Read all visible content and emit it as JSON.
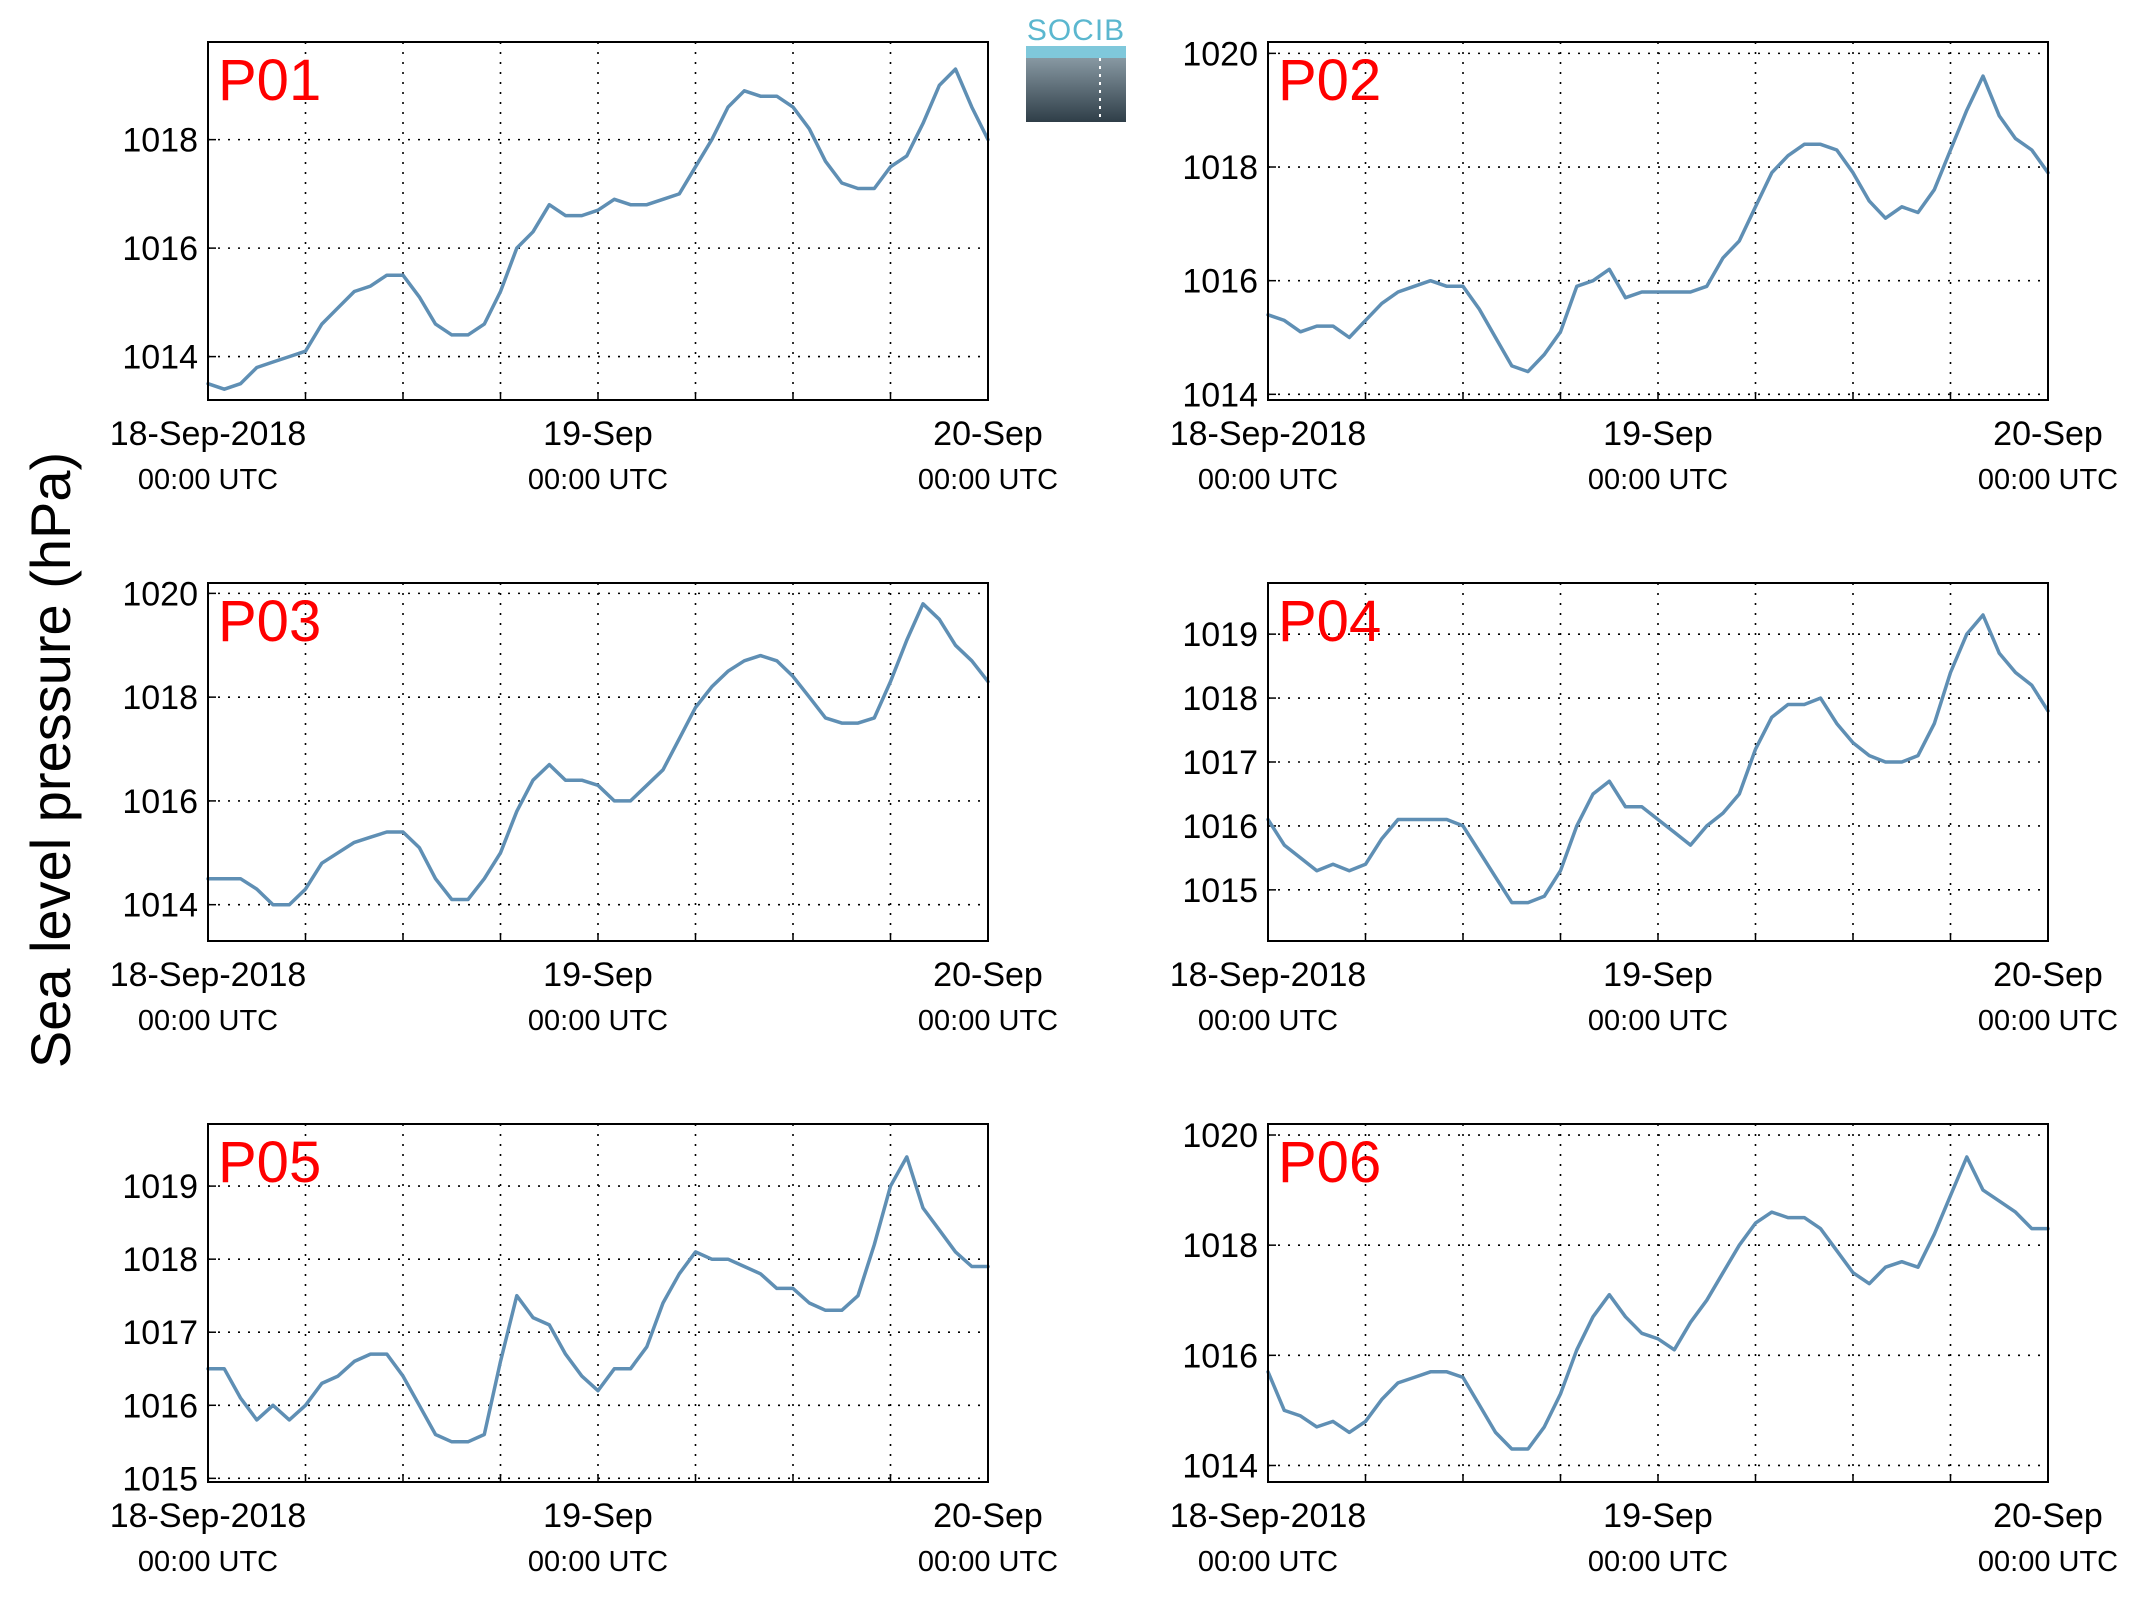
{
  "figure": {
    "ylabel": "Sea level pressure (hPa)",
    "logo_text": "SOCIB",
    "colors": {
      "line": "#5f8fb4",
      "panel_label": "#ff0000",
      "grid": "#000000"
    }
  },
  "chart_data": [
    {
      "type": "line",
      "name": "P01",
      "x_ticks": [
        {
          "label": "18-Sep-2018",
          "sublabel": "00:00 UTC",
          "x": 0
        },
        {
          "label": "19-Sep",
          "sublabel": "00:00 UTC",
          "x": 24
        },
        {
          "label": "20-Sep",
          "sublabel": "00:00 UTC",
          "x": 48
        }
      ],
      "x_unit": "hours since 18-Sep-2018 00:00 UTC",
      "xlim": [
        0,
        48
      ],
      "x_minor_grid_every": 6,
      "ylim": [
        1013.2,
        1019.8
      ],
      "y_ticks": [
        1014,
        1016,
        1018
      ],
      "grid": true,
      "x": [
        0,
        1,
        2,
        3,
        4,
        5,
        6,
        7,
        8,
        9,
        10,
        11,
        12,
        13,
        14,
        15,
        16,
        17,
        18,
        19,
        20,
        21,
        22,
        23,
        24,
        25,
        26,
        27,
        28,
        29,
        30,
        31,
        32,
        33,
        34,
        35,
        36,
        37,
        38,
        39,
        40,
        41,
        42,
        43,
        44,
        45,
        46,
        47,
        48
      ],
      "y": [
        1013.5,
        1013.4,
        1013.5,
        1013.8,
        1013.9,
        1014.0,
        1014.1,
        1014.6,
        1014.9,
        1015.2,
        1015.3,
        1015.5,
        1015.5,
        1015.1,
        1014.6,
        1014.4,
        1014.4,
        1014.6,
        1015.2,
        1016.0,
        1016.3,
        1016.8,
        1016.6,
        1016.6,
        1016.7,
        1016.9,
        1016.8,
        1016.8,
        1016.9,
        1017.0,
        1017.5,
        1018.0,
        1018.6,
        1018.9,
        1018.8,
        1018.8,
        1018.6,
        1018.2,
        1017.6,
        1017.2,
        1017.1,
        1017.1,
        1017.5,
        1017.7,
        1018.3,
        1019.0,
        1019.3,
        1018.6,
        1018.0
      ]
    },
    {
      "type": "line",
      "name": "P02",
      "x_ticks": [
        {
          "label": "18-Sep-2018",
          "sublabel": "00:00 UTC",
          "x": 0
        },
        {
          "label": "19-Sep",
          "sublabel": "00:00 UTC",
          "x": 24
        },
        {
          "label": "20-Sep",
          "sublabel": "00:00 UTC",
          "x": 48
        }
      ],
      "x_unit": "hours since 18-Sep-2018 00:00 UTC",
      "xlim": [
        0,
        48
      ],
      "x_minor_grid_every": 6,
      "ylim": [
        1013.9,
        1020.2
      ],
      "y_ticks": [
        1014,
        1016,
        1018,
        1020
      ],
      "grid": true,
      "x": [
        0,
        1,
        2,
        3,
        4,
        5,
        6,
        7,
        8,
        9,
        10,
        11,
        12,
        13,
        14,
        15,
        16,
        17,
        18,
        19,
        20,
        21,
        22,
        23,
        24,
        25,
        26,
        27,
        28,
        29,
        30,
        31,
        32,
        33,
        34,
        35,
        36,
        37,
        38,
        39,
        40,
        41,
        42,
        43,
        44,
        45,
        46,
        47,
        48
      ],
      "y": [
        1015.4,
        1015.3,
        1015.1,
        1015.2,
        1015.2,
        1015.0,
        1015.3,
        1015.6,
        1015.8,
        1015.9,
        1016.0,
        1015.9,
        1015.9,
        1015.5,
        1015.0,
        1014.5,
        1014.4,
        1014.7,
        1015.1,
        1015.9,
        1016.0,
        1016.2,
        1015.7,
        1015.8,
        1015.8,
        1015.8,
        1015.8,
        1015.9,
        1016.4,
        1016.7,
        1017.3,
        1017.9,
        1018.2,
        1018.4,
        1018.4,
        1018.3,
        1017.9,
        1017.4,
        1017.1,
        1017.3,
        1017.2,
        1017.6,
        1018.3,
        1019.0,
        1019.6,
        1018.9,
        1018.5,
        1018.3,
        1017.9
      ]
    },
    {
      "type": "line",
      "name": "P03",
      "x_ticks": [
        {
          "label": "18-Sep-2018",
          "sublabel": "00:00 UTC",
          "x": 0
        },
        {
          "label": "19-Sep",
          "sublabel": "00:00 UTC",
          "x": 24
        },
        {
          "label": "20-Sep",
          "sublabel": "00:00 UTC",
          "x": 48
        }
      ],
      "x_unit": "hours since 18-Sep-2018 00:00 UTC",
      "xlim": [
        0,
        48
      ],
      "x_minor_grid_every": 6,
      "ylim": [
        1013.3,
        1020.2
      ],
      "y_ticks": [
        1014,
        1016,
        1018,
        1020
      ],
      "grid": true,
      "x": [
        0,
        1,
        2,
        3,
        4,
        5,
        6,
        7,
        8,
        9,
        10,
        11,
        12,
        13,
        14,
        15,
        16,
        17,
        18,
        19,
        20,
        21,
        22,
        23,
        24,
        25,
        26,
        27,
        28,
        29,
        30,
        31,
        32,
        33,
        34,
        35,
        36,
        37,
        38,
        39,
        40,
        41,
        42,
        43,
        44,
        45,
        46,
        47,
        48
      ],
      "y": [
        1014.5,
        1014.5,
        1014.5,
        1014.3,
        1014.0,
        1014.0,
        1014.3,
        1014.8,
        1015.0,
        1015.2,
        1015.3,
        1015.4,
        1015.4,
        1015.1,
        1014.5,
        1014.1,
        1014.1,
        1014.5,
        1015.0,
        1015.8,
        1016.4,
        1016.7,
        1016.4,
        1016.4,
        1016.3,
        1016.0,
        1016.0,
        1016.3,
        1016.6,
        1017.2,
        1017.8,
        1018.2,
        1018.5,
        1018.7,
        1018.8,
        1018.7,
        1018.4,
        1018.0,
        1017.6,
        1017.5,
        1017.5,
        1017.6,
        1018.3,
        1019.1,
        1019.8,
        1019.5,
        1019.0,
        1018.7,
        1018.3
      ]
    },
    {
      "type": "line",
      "name": "P04",
      "x_ticks": [
        {
          "label": "18-Sep-2018",
          "sublabel": "00:00 UTC",
          "x": 0
        },
        {
          "label": "19-Sep",
          "sublabel": "00:00 UTC",
          "x": 24
        },
        {
          "label": "20-Sep",
          "sublabel": "00:00 UTC",
          "x": 48
        }
      ],
      "x_unit": "hours since 18-Sep-2018 00:00 UTC",
      "xlim": [
        0,
        48
      ],
      "x_minor_grid_every": 6,
      "ylim": [
        1014.2,
        1019.8
      ],
      "y_ticks": [
        1015,
        1016,
        1017,
        1018,
        1019
      ],
      "grid": true,
      "x": [
        0,
        1,
        2,
        3,
        4,
        5,
        6,
        7,
        8,
        9,
        10,
        11,
        12,
        13,
        14,
        15,
        16,
        17,
        18,
        19,
        20,
        21,
        22,
        23,
        24,
        25,
        26,
        27,
        28,
        29,
        30,
        31,
        32,
        33,
        34,
        35,
        36,
        37,
        38,
        39,
        40,
        41,
        42,
        43,
        44,
        45,
        46,
        47,
        48
      ],
      "y": [
        1016.1,
        1015.7,
        1015.5,
        1015.3,
        1015.4,
        1015.3,
        1015.4,
        1015.8,
        1016.1,
        1016.1,
        1016.1,
        1016.1,
        1016.0,
        1015.6,
        1015.2,
        1014.8,
        1014.8,
        1014.9,
        1015.3,
        1016.0,
        1016.5,
        1016.7,
        1016.3,
        1016.3,
        1016.1,
        1015.9,
        1015.7,
        1016.0,
        1016.2,
        1016.5,
        1017.2,
        1017.7,
        1017.9,
        1017.9,
        1018.0,
        1017.6,
        1017.3,
        1017.1,
        1017.0,
        1017.0,
        1017.1,
        1017.6,
        1018.4,
        1019.0,
        1019.3,
        1018.7,
        1018.4,
        1018.2,
        1017.8
      ]
    },
    {
      "type": "line",
      "name": "P05",
      "x_ticks": [
        {
          "label": "18-Sep-2018",
          "sublabel": "00:00 UTC",
          "x": 0
        },
        {
          "label": "19-Sep",
          "sublabel": "00:00 UTC",
          "x": 24
        },
        {
          "label": "20-Sep",
          "sublabel": "00:00 UTC",
          "x": 48
        }
      ],
      "x_unit": "hours since 18-Sep-2018 00:00 UTC",
      "xlim": [
        0,
        48
      ],
      "x_minor_grid_every": 6,
      "ylim": [
        1014.95,
        1019.85
      ],
      "y_ticks": [
        1015,
        1016,
        1017,
        1018,
        1019
      ],
      "grid": true,
      "x": [
        0,
        1,
        2,
        3,
        4,
        5,
        6,
        7,
        8,
        9,
        10,
        11,
        12,
        13,
        14,
        15,
        16,
        17,
        18,
        19,
        20,
        21,
        22,
        23,
        24,
        25,
        26,
        27,
        28,
        29,
        30,
        31,
        32,
        33,
        34,
        35,
        36,
        37,
        38,
        39,
        40,
        41,
        42,
        43,
        44,
        45,
        46,
        47,
        48
      ],
      "y": [
        1016.5,
        1016.5,
        1016.1,
        1015.8,
        1016.0,
        1015.8,
        1016.0,
        1016.3,
        1016.4,
        1016.6,
        1016.7,
        1016.7,
        1016.4,
        1016.0,
        1015.6,
        1015.5,
        1015.5,
        1015.6,
        1016.6,
        1017.5,
        1017.2,
        1017.1,
        1016.7,
        1016.4,
        1016.2,
        1016.5,
        1016.5,
        1016.8,
        1017.4,
        1017.8,
        1018.1,
        1018.0,
        1018.0,
        1017.9,
        1017.8,
        1017.6,
        1017.6,
        1017.4,
        1017.3,
        1017.3,
        1017.5,
        1018.2,
        1019.0,
        1019.4,
        1018.7,
        1018.4,
        1018.1,
        1017.9,
        1017.9
      ]
    },
    {
      "type": "line",
      "name": "P06",
      "x_ticks": [
        {
          "label": "18-Sep-2018",
          "sublabel": "00:00 UTC",
          "x": 0
        },
        {
          "label": "19-Sep",
          "sublabel": "00:00 UTC",
          "x": 24
        },
        {
          "label": "20-Sep",
          "sublabel": "00:00 UTC",
          "x": 48
        }
      ],
      "x_unit": "hours since 18-Sep-2018 00:00 UTC",
      "xlim": [
        0,
        48
      ],
      "x_minor_grid_every": 6,
      "ylim": [
        1013.7,
        1020.2
      ],
      "y_ticks": [
        1014,
        1016,
        1018,
        1020
      ],
      "grid": true,
      "x": [
        0,
        1,
        2,
        3,
        4,
        5,
        6,
        7,
        8,
        9,
        10,
        11,
        12,
        13,
        14,
        15,
        16,
        17,
        18,
        19,
        20,
        21,
        22,
        23,
        24,
        25,
        26,
        27,
        28,
        29,
        30,
        31,
        32,
        33,
        34,
        35,
        36,
        37,
        38,
        39,
        40,
        41,
        42,
        43,
        44,
        45,
        46,
        47,
        48
      ],
      "y": [
        1015.7,
        1015.0,
        1014.9,
        1014.7,
        1014.8,
        1014.6,
        1014.8,
        1015.2,
        1015.5,
        1015.6,
        1015.7,
        1015.7,
        1015.6,
        1015.1,
        1014.6,
        1014.3,
        1014.3,
        1014.7,
        1015.3,
        1016.1,
        1016.7,
        1017.1,
        1016.7,
        1016.4,
        1016.3,
        1016.1,
        1016.6,
        1017.0,
        1017.5,
        1018.0,
        1018.4,
        1018.6,
        1018.5,
        1018.5,
        1018.3,
        1017.9,
        1017.5,
        1017.3,
        1017.6,
        1017.7,
        1017.6,
        1018.2,
        1018.9,
        1019.6,
        1019.0,
        1018.8,
        1018.6,
        1018.3,
        1018.3
      ]
    }
  ]
}
